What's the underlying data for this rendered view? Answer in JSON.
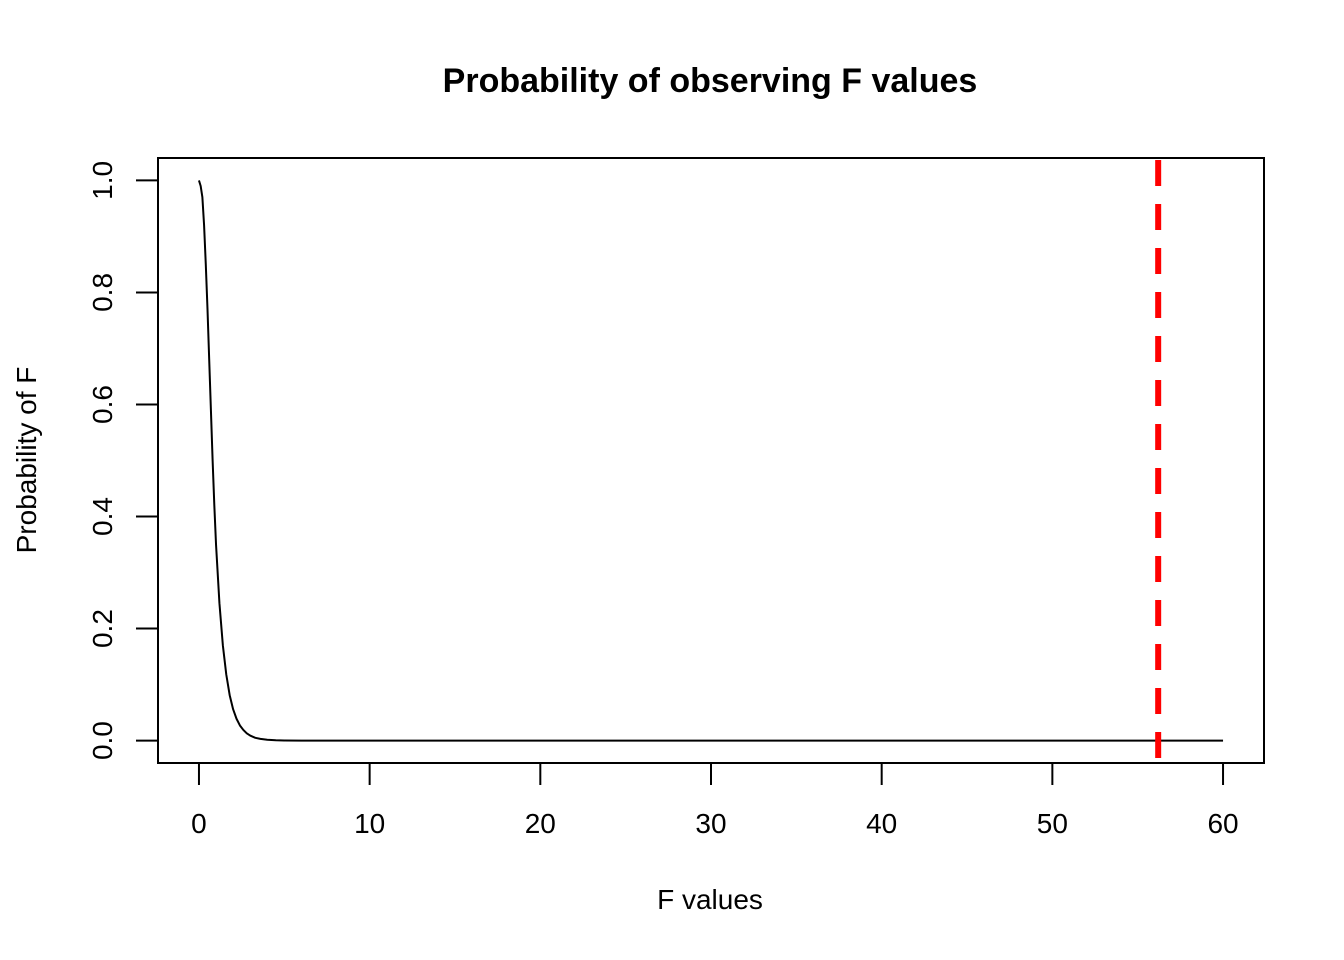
{
  "chart_data": {
    "type": "line",
    "title": "Probability of observing F values",
    "xlabel": "F values",
    "ylabel": "Probability of F",
    "xlim": [
      -2.4,
      62.4
    ],
    "ylim": [
      -0.04,
      1.04
    ],
    "x_ticks": [
      0,
      10,
      20,
      30,
      40,
      50,
      60
    ],
    "x_tick_labels": [
      "0",
      "10",
      "20",
      "30",
      "40",
      "50",
      "60"
    ],
    "y_ticks": [
      0.0,
      0.2,
      0.4,
      0.6,
      0.8,
      1.0
    ],
    "y_tick_labels": [
      "0.0",
      "0.2",
      "0.4",
      "0.6",
      "0.8",
      "1.0"
    ],
    "grid": false,
    "legend": "none",
    "series": [
      {
        "color": "#000000",
        "x": [
          0,
          0.1,
          0.2,
          0.3,
          0.4,
          0.5,
          0.6,
          0.7,
          0.8,
          0.9,
          1.0,
          1.2,
          1.4,
          1.6,
          1.8,
          2.0,
          2.2,
          2.4,
          2.6,
          2.8,
          3.0,
          3.3,
          3.6,
          4.0,
          4.5,
          5.0,
          6.0,
          8.0,
          10,
          20,
          30,
          40,
          50,
          60
        ],
        "y": [
          1.0,
          0.99,
          0.97,
          0.92,
          0.85,
          0.77,
          0.68,
          0.59,
          0.5,
          0.42,
          0.35,
          0.245,
          0.17,
          0.118,
          0.081,
          0.056,
          0.039,
          0.027,
          0.019,
          0.013,
          0.009,
          0.005,
          0.003,
          0.0015,
          0.0006,
          0.0002,
          3e-05,
          0.0,
          0.0,
          0.0,
          0.0,
          0.0,
          0.0,
          0.0
        ]
      }
    ],
    "reference_lines": [
      {
        "axis": "x",
        "value": 56.2,
        "color": "#ff0000",
        "style": "dashed"
      }
    ]
  }
}
